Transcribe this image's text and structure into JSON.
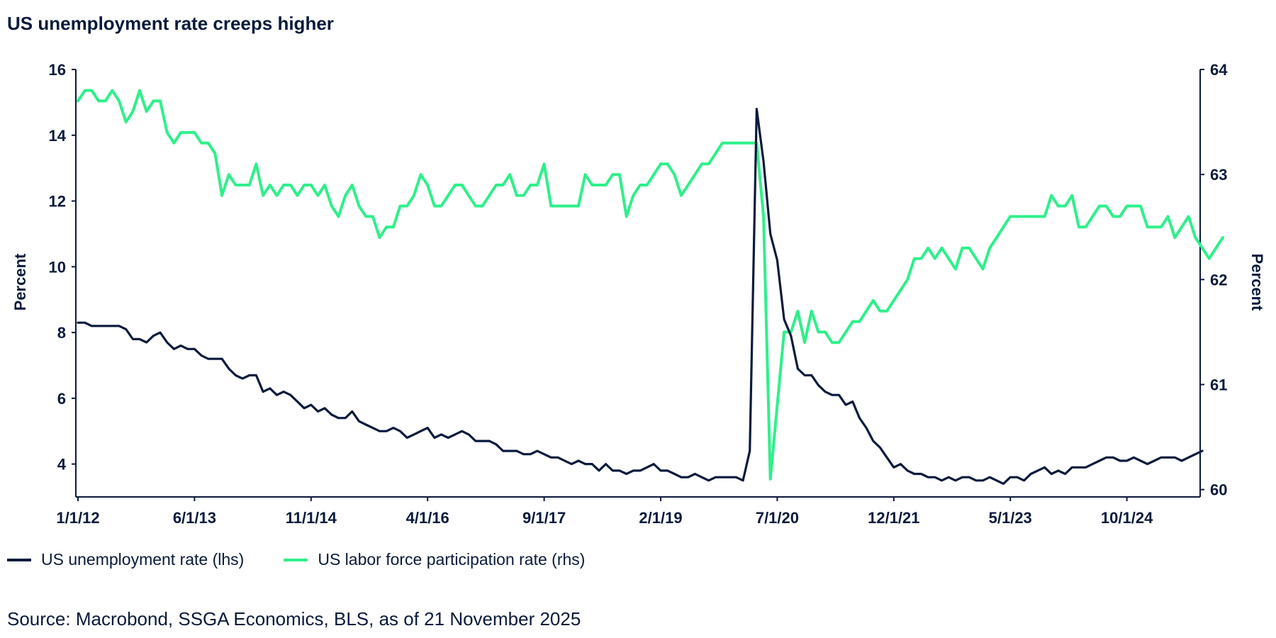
{
  "title": "US unemployment rate creeps higher",
  "source": "Source: Macrobond, SSGA Economics, BLS, as of 21 November 2025",
  "colors": {
    "unemployment": "#0a1a3c",
    "participation": "#2ef08a",
    "axis": "#0a1a3c"
  },
  "chart_data": {
    "type": "line",
    "x_start": "2012-01",
    "x_frequency": "monthly",
    "x_tick_labels": [
      "1/1/12",
      "6/1/13",
      "11/1/14",
      "4/1/16",
      "9/1/17",
      "2/1/19",
      "7/1/20",
      "12/1/21",
      "5/1/23",
      "10/1/24"
    ],
    "ylabel_left": "Percent",
    "ylabel_right": "Percent",
    "ylim_left": [
      3,
      16
    ],
    "yticks_left": [
      4,
      6,
      8,
      10,
      12,
      14,
      16
    ],
    "ylim_right": [
      59.93,
      64
    ],
    "yticks_right": [
      60,
      61,
      62,
      63,
      64
    ],
    "legend_position": "bottom-left",
    "grid": false,
    "series": [
      {
        "name": "US unemployment rate (lhs)",
        "axis": "left",
        "values": [
          8.3,
          8.3,
          8.2,
          8.2,
          8.2,
          8.2,
          8.2,
          8.1,
          7.8,
          7.8,
          7.7,
          7.9,
          8.0,
          7.7,
          7.5,
          7.6,
          7.5,
          7.5,
          7.3,
          7.2,
          7.2,
          7.2,
          6.9,
          6.7,
          6.6,
          6.7,
          6.7,
          6.2,
          6.3,
          6.1,
          6.2,
          6.1,
          5.9,
          5.7,
          5.8,
          5.6,
          5.7,
          5.5,
          5.4,
          5.4,
          5.6,
          5.3,
          5.2,
          5.1,
          5.0,
          5.0,
          5.1,
          5.0,
          4.8,
          4.9,
          5.0,
          5.1,
          4.8,
          4.9,
          4.8,
          4.9,
          5.0,
          4.9,
          4.7,
          4.7,
          4.7,
          4.6,
          4.4,
          4.4,
          4.4,
          4.3,
          4.3,
          4.4,
          4.3,
          4.2,
          4.2,
          4.1,
          4.0,
          4.1,
          4.0,
          4.0,
          3.8,
          4.0,
          3.8,
          3.8,
          3.7,
          3.8,
          3.8,
          3.9,
          4.0,
          3.8,
          3.8,
          3.7,
          3.6,
          3.6,
          3.7,
          3.6,
          3.5,
          3.6,
          3.6,
          3.6,
          3.6,
          3.5,
          4.4,
          14.8,
          13.2,
          11.0,
          10.2,
          8.4,
          7.9,
          6.9,
          6.7,
          6.7,
          6.4,
          6.2,
          6.1,
          6.1,
          5.8,
          5.9,
          5.4,
          5.1,
          4.7,
          4.5,
          4.2,
          3.9,
          4.0,
          3.8,
          3.7,
          3.7,
          3.6,
          3.6,
          3.5,
          3.6,
          3.5,
          3.6,
          3.6,
          3.5,
          3.5,
          3.6,
          3.5,
          3.4,
          3.6,
          3.6,
          3.5,
          3.7,
          3.8,
          3.9,
          3.7,
          3.8,
          3.7,
          3.9,
          3.9,
          3.9,
          4.0,
          4.1,
          4.2,
          4.2,
          4.1,
          4.1,
          4.2,
          4.1,
          4.0,
          4.1,
          4.2,
          4.2,
          4.2,
          4.1,
          4.2,
          4.3,
          4.4
        ]
      },
      {
        "name": "US labor force participation rate (rhs)",
        "axis": "right",
        "values": [
          63.7,
          63.8,
          63.8,
          63.7,
          63.7,
          63.8,
          63.7,
          63.5,
          63.6,
          63.8,
          63.6,
          63.7,
          63.7,
          63.4,
          63.3,
          63.4,
          63.4,
          63.4,
          63.3,
          63.3,
          63.2,
          62.8,
          63.0,
          62.9,
          62.9,
          62.9,
          63.1,
          62.8,
          62.9,
          62.8,
          62.9,
          62.9,
          62.8,
          62.9,
          62.9,
          62.8,
          62.9,
          62.7,
          62.6,
          62.8,
          62.9,
          62.7,
          62.6,
          62.6,
          62.4,
          62.5,
          62.5,
          62.7,
          62.7,
          62.8,
          63.0,
          62.9,
          62.7,
          62.7,
          62.8,
          62.9,
          62.9,
          62.8,
          62.7,
          62.7,
          62.8,
          62.9,
          62.9,
          63.0,
          62.8,
          62.8,
          62.9,
          62.9,
          63.1,
          62.7,
          62.7,
          62.7,
          62.7,
          62.7,
          63.0,
          62.9,
          62.9,
          62.9,
          63.0,
          63.0,
          62.6,
          62.8,
          62.9,
          62.9,
          63.0,
          63.1,
          63.1,
          63.0,
          62.8,
          62.9,
          63.0,
          63.1,
          63.1,
          63.2,
          63.3,
          63.3,
          63.3,
          63.3,
          63.3,
          63.3,
          62.6,
          60.1,
          60.8,
          61.5,
          61.5,
          61.7,
          61.4,
          61.7,
          61.5,
          61.5,
          61.4,
          61.4,
          61.5,
          61.6,
          61.6,
          61.7,
          61.8,
          61.7,
          61.7,
          61.8,
          61.9,
          62.0,
          62.2,
          62.2,
          62.3,
          62.2,
          62.3,
          62.2,
          62.1,
          62.3,
          62.3,
          62.2,
          62.1,
          62.3,
          62.4,
          62.5,
          62.6,
          62.6,
          62.6,
          62.6,
          62.6,
          62.6,
          62.8,
          62.7,
          62.7,
          62.8,
          62.5,
          62.5,
          62.6,
          62.7,
          62.7,
          62.6,
          62.6,
          62.7,
          62.7,
          62.7,
          62.5,
          62.5,
          62.5,
          62.6,
          62.4,
          62.5,
          62.6,
          62.4,
          62.3,
          62.2,
          62.3,
          62.4
        ]
      }
    ]
  }
}
